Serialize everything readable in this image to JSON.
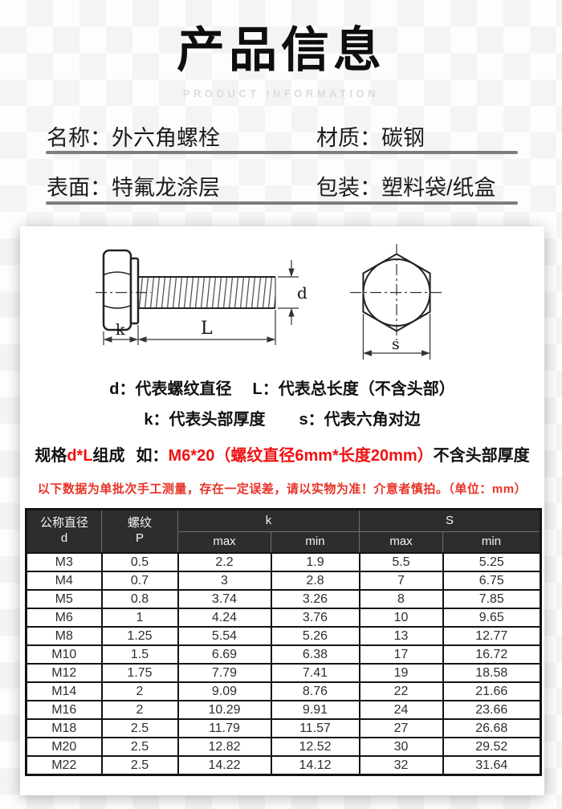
{
  "header": {
    "title": "产品信息",
    "subtitle": "PRODUCT INFORMATION"
  },
  "info": {
    "name_label": "名称：",
    "name_value": "外六角螺栓",
    "material_label": "材质：",
    "material_value": "碳钢",
    "surface_label": "表面：",
    "surface_value": "特氟龙涂层",
    "packaging_label": "包装：",
    "packaging_value": "塑料袋/纸盒"
  },
  "diagram": {
    "dim_d": "d",
    "dim_l": "L",
    "dim_k": "k",
    "dim_s": "s",
    "legend_d": "d：代表螺纹直径",
    "legend_l": "L：代表总长度（不含头部）",
    "legend_k": "k：代表头部厚度",
    "legend_s": "s：代表六角对边"
  },
  "spec_line": {
    "part1_black": "规格",
    "part2_red": "d*L",
    "part3_black": "组成",
    "part4_black": "如：",
    "part5_red": "M6*20（螺纹直径6mm*长度20mm）",
    "part6_black": "不含头部厚度"
  },
  "warning": "以下数据为单批次手工测量，存在一定误差，请以实物为准！介意者慎拍。（单位：mm）",
  "table": {
    "header": {
      "col_d_line1": "公称直径",
      "col_d_line2": "d",
      "col_p_line1": "螺纹",
      "col_p_line2": "P",
      "group_k": "k",
      "group_s": "S",
      "sub": [
        "max",
        "min",
        "max",
        "min"
      ]
    },
    "rows": [
      [
        "M3",
        "0.5",
        "2.2",
        "1.9",
        "5.5",
        "5.25"
      ],
      [
        "M4",
        "0.7",
        "3",
        "2.8",
        "7",
        "6.75"
      ],
      [
        "M5",
        "0.8",
        "3.74",
        "3.26",
        "8",
        "7.85"
      ],
      [
        "M6",
        "1",
        "4.24",
        "3.76",
        "10",
        "9.65"
      ],
      [
        "M8",
        "1.25",
        "5.54",
        "5.26",
        "13",
        "12.77"
      ],
      [
        "M10",
        "1.5",
        "6.69",
        "6.38",
        "17",
        "16.72"
      ],
      [
        "M12",
        "1.75",
        "7.79",
        "7.41",
        "19",
        "18.58"
      ],
      [
        "M14",
        "2",
        "9.09",
        "8.76",
        "22",
        "21.66"
      ],
      [
        "M16",
        "2",
        "10.29",
        "9.91",
        "24",
        "23.66"
      ],
      [
        "M18",
        "2.5",
        "11.79",
        "11.57",
        "27",
        "26.68"
      ],
      [
        "M20",
        "2.5",
        "12.82",
        "12.52",
        "30",
        "29.52"
      ],
      [
        "M22",
        "2.5",
        "14.22",
        "14.12",
        "32",
        "31.64"
      ]
    ]
  },
  "colors": {
    "spec_red": "#f01111",
    "warning_red": "#e73327",
    "table_header_bg": "#2d2d2d"
  }
}
